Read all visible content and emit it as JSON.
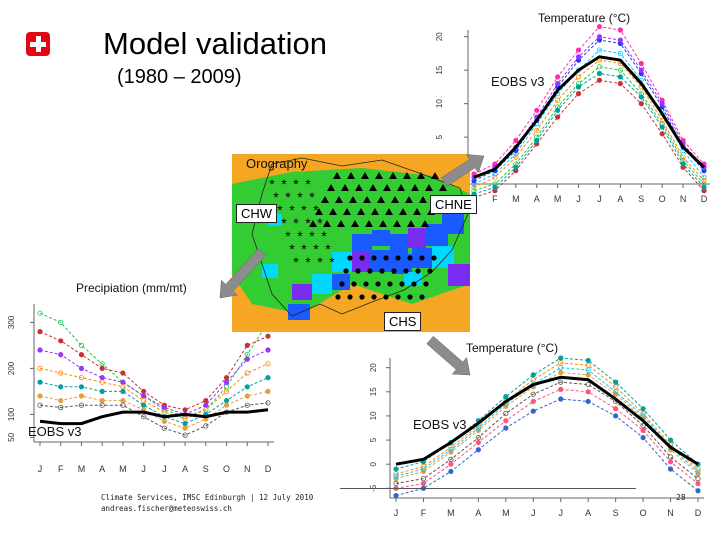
{
  "slide": {
    "title": "Model validation",
    "subtitle": "(1980 – 2009)",
    "logo_icon": "swiss-cross-icon",
    "page_number": "28",
    "footer_line1": "Climate Services, IMSC Edinburgh | 12 July 2010",
    "footer_line2": "andreas.fischer@meteoswiss.ch"
  },
  "map": {
    "title": "Orography",
    "regions": [
      "CHW",
      "CHNE",
      "CHS"
    ]
  },
  "arrows": [
    "arrow-to-chne",
    "arrow-to-chw",
    "arrow-to-chs"
  ],
  "chart_data": [
    {
      "type": "line",
      "region": "CHNE",
      "title": "Temperature (°C)",
      "obs_label": "EOBS v3",
      "categories": [
        "J",
        "F",
        "M",
        "A",
        "M",
        "J",
        "J",
        "A",
        "S",
        "O",
        "N",
        "D"
      ],
      "yticks": [
        0,
        5,
        10,
        15,
        20
      ],
      "ylim": [
        -2,
        21
      ],
      "series": [
        {
          "name": "EOBS v3",
          "values": [
            -1,
            0.2,
            3.5,
            7.5,
            12,
            15,
            17,
            16.5,
            13,
            8.5,
            3.5,
            0.5
          ]
        }
      ],
      "models": [
        [
          -2,
          -0.5,
          2.5,
          7,
          11.5,
          15,
          18,
          17.5,
          13.5,
          8.5,
          3,
          -1
        ],
        [
          -0.5,
          1,
          4.5,
          9,
          14,
          18,
          21.5,
          21,
          16,
          10.5,
          4.5,
          1
        ],
        [
          -1.5,
          0,
          3,
          7.5,
          12.5,
          16.5,
          19.5,
          19,
          14.5,
          9.5,
          3.5,
          0
        ],
        [
          -3,
          -2,
          1,
          5,
          9.5,
          13,
          15.5,
          15,
          11.5,
          7,
          1.5,
          -2
        ],
        [
          -4,
          -3,
          0,
          4,
          8,
          11.5,
          13.5,
          13,
          10,
          5.5,
          0.5,
          -3
        ],
        [
          -1,
          0.5,
          3.5,
          8,
          13,
          17,
          20,
          19.5,
          15,
          10,
          4,
          0.5
        ],
        [
          -2.5,
          -1,
          2,
          6,
          10.5,
          14,
          16.5,
          16,
          12.5,
          7.5,
          2,
          -1.5
        ],
        [
          -3.5,
          -2.5,
          0.5,
          4.5,
          9,
          12.5,
          14.5,
          14,
          11,
          6.5,
          1,
          -2.5
        ]
      ]
    },
    {
      "type": "line",
      "region": "CHW",
      "title": "Precipiation (mm/mt)",
      "obs_label": "EOBS v3",
      "categories": [
        "J",
        "F",
        "M",
        "A",
        "M",
        "J",
        "J",
        "A",
        "S",
        "O",
        "N",
        "D"
      ],
      "yticks": [
        50,
        100,
        200,
        300
      ],
      "ylim": [
        40,
        340
      ],
      "series": [
        {
          "name": "EOBS v3",
          "values": [
            85,
            80,
            80,
            95,
            105,
            105,
            95,
            100,
            95,
            105,
            105,
            110
          ]
        }
      ],
      "models": [
        [
          320,
          300,
          250,
          210,
          170,
          140,
          110,
          95,
          110,
          160,
          230,
          300
        ],
        [
          280,
          260,
          230,
          200,
          190,
          150,
          120,
          110,
          130,
          180,
          250,
          270
        ],
        [
          240,
          230,
          200,
          180,
          170,
          140,
          115,
          100,
          120,
          170,
          220,
          240
        ],
        [
          200,
          190,
          180,
          170,
          160,
          130,
          105,
          90,
          110,
          150,
          190,
          210
        ],
        [
          170,
          160,
          160,
          150,
          150,
          120,
          95,
          80,
          100,
          130,
          160,
          180
        ],
        [
          140,
          130,
          140,
          130,
          130,
          110,
          85,
          70,
          90,
          120,
          140,
          150
        ],
        [
          120,
          115,
          120,
          120,
          120,
          95,
          70,
          55,
          75,
          105,
          120,
          125
        ]
      ]
    },
    {
      "type": "line",
      "region": "CHS",
      "title": "Temperature (°C)",
      "obs_label": "EOBS v3",
      "categories": [
        "J",
        "F",
        "M",
        "A",
        "M",
        "J",
        "J",
        "A",
        "S",
        "O",
        "N",
        "D"
      ],
      "yticks": [
        -5,
        0,
        5,
        10,
        15,
        20
      ],
      "ylim": [
        -7,
        22
      ],
      "series": [
        {
          "name": "EOBS v3",
          "values": [
            0,
            1,
            4.5,
            8.5,
            13,
            16.5,
            18,
            17.5,
            13.5,
            9,
            3.5,
            0
          ]
        }
      ],
      "models": [
        [
          -2,
          -0.5,
          3.5,
          8,
          13,
          17.5,
          21,
          20.5,
          16,
          10.5,
          4,
          -1
        ],
        [
          -1,
          0.5,
          4.5,
          9,
          14,
          18.5,
          22,
          21.5,
          17,
          11.5,
          5,
          0
        ],
        [
          -3,
          -1.5,
          2.5,
          7,
          12,
          16,
          19,
          18.5,
          14.5,
          9.5,
          3,
          -2
        ],
        [
          -4,
          -3,
          1,
          5.5,
          10.5,
          14.5,
          17,
          16.5,
          13,
          8,
          1.5,
          -3
        ],
        [
          -5,
          -4,
          0,
          4.5,
          9,
          13,
          15.5,
          15,
          11.5,
          7,
          0.5,
          -4
        ],
        [
          -6.5,
          -5,
          -1.5,
          3,
          7.5,
          11,
          13.5,
          13,
          10,
          5.5,
          -1,
          -5.5
        ],
        [
          -2.5,
          -1,
          3,
          7.5,
          12.5,
          16.5,
          20,
          19.5,
          15,
          10,
          3.5,
          -1.5
        ]
      ]
    }
  ],
  "colors": {
    "swiss_red": "#e30613",
    "arrow_gray": "#8c8c8c",
    "orange": "#f5a623",
    "green": "#33cc33",
    "blue": "#1a5bff",
    "purple": "#7a2cf0",
    "cyan": "#00d8ff",
    "magenta": "#d63aa0",
    "obs_line": "#000000"
  }
}
